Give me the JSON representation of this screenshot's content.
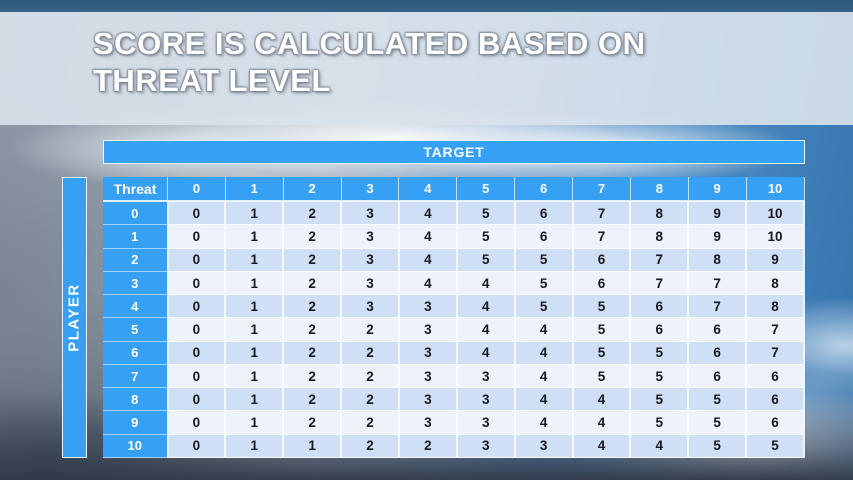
{
  "slide": {
    "title_line1": "SCORE IS CALCULATED BASED ON",
    "title_line2": "THREAT LEVEL"
  },
  "chart_data": {
    "type": "table",
    "title": "SCORE IS CALCULATED BASED ON THREAT LEVEL",
    "column_group_label": "TARGET",
    "row_group_label": "PLAYER",
    "corner_label": "Threat",
    "columns": [
      "0",
      "1",
      "2",
      "3",
      "4",
      "5",
      "6",
      "7",
      "8",
      "9",
      "10"
    ],
    "rows": [
      {
        "label": "0",
        "values": [
          0,
          1,
          2,
          3,
          4,
          5,
          6,
          7,
          8,
          9,
          10
        ]
      },
      {
        "label": "1",
        "values": [
          0,
          1,
          2,
          3,
          4,
          5,
          6,
          7,
          8,
          9,
          10
        ]
      },
      {
        "label": "2",
        "values": [
          0,
          1,
          2,
          3,
          4,
          5,
          5,
          6,
          7,
          8,
          9
        ]
      },
      {
        "label": "3",
        "values": [
          0,
          1,
          2,
          3,
          4,
          4,
          5,
          6,
          7,
          7,
          8
        ]
      },
      {
        "label": "4",
        "values": [
          0,
          1,
          2,
          3,
          3,
          4,
          5,
          5,
          6,
          7,
          8
        ]
      },
      {
        "label": "5",
        "values": [
          0,
          1,
          2,
          2,
          3,
          4,
          4,
          5,
          6,
          6,
          7
        ]
      },
      {
        "label": "6",
        "values": [
          0,
          1,
          2,
          2,
          3,
          4,
          4,
          5,
          5,
          6,
          7
        ]
      },
      {
        "label": "7",
        "values": [
          0,
          1,
          2,
          2,
          3,
          3,
          4,
          5,
          5,
          6,
          6
        ]
      },
      {
        "label": "8",
        "values": [
          0,
          1,
          2,
          2,
          3,
          3,
          4,
          4,
          5,
          5,
          6
        ]
      },
      {
        "label": "9",
        "values": [
          0,
          1,
          2,
          2,
          3,
          3,
          4,
          4,
          5,
          5,
          6
        ]
      },
      {
        "label": "10",
        "values": [
          0,
          1,
          1,
          2,
          2,
          3,
          3,
          4,
          4,
          5,
          5
        ]
      }
    ]
  },
  "colors": {
    "accent_blue": "#36a0f5",
    "row_band_dark": "#cfdff6",
    "row_band_light": "#edf2fb",
    "cell_text": "#17181d",
    "top_strip": "#2d5a7b",
    "title_text": "#ffffff"
  }
}
